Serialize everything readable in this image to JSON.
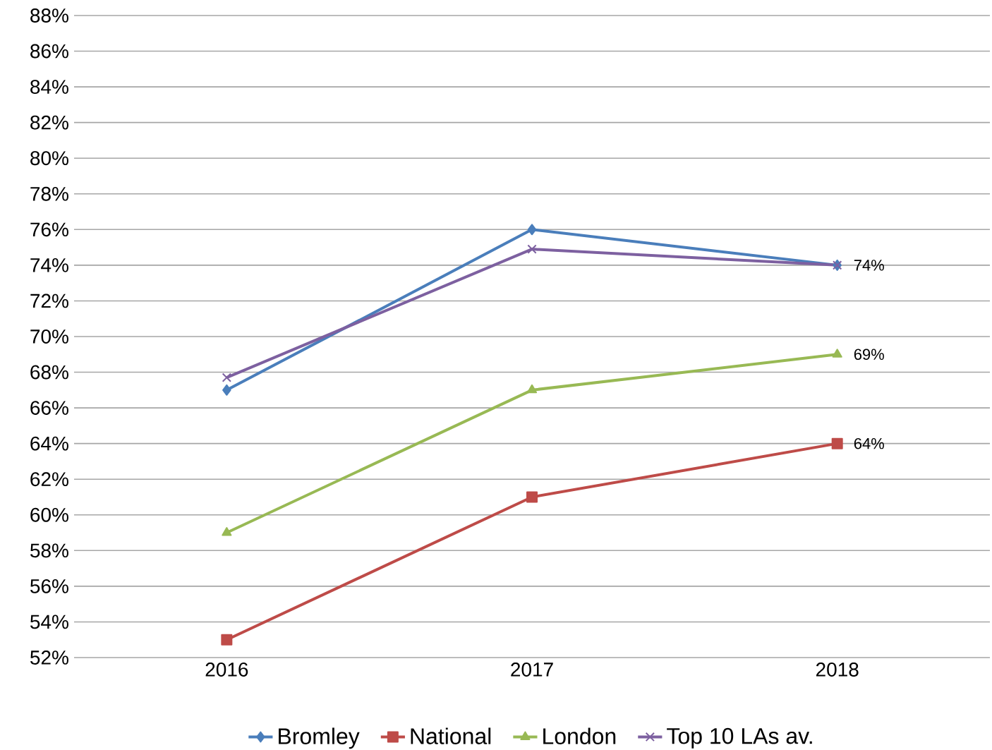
{
  "chart_data": {
    "type": "line",
    "categories": [
      "2016",
      "2017",
      "2018"
    ],
    "series": [
      {
        "name": "Bromley",
        "color": "#4a7ebb",
        "marker": "diamond",
        "values": [
          67,
          76,
          74
        ],
        "value_labels": [
          null,
          null,
          "74%"
        ]
      },
      {
        "name": "National",
        "color": "#be4b48",
        "marker": "square",
        "values": [
          53,
          61,
          64
        ],
        "value_labels": [
          null,
          null,
          "64%"
        ]
      },
      {
        "name": "London",
        "color": "#98b954",
        "marker": "triangle",
        "values": [
          59,
          67,
          69
        ],
        "value_labels": [
          null,
          null,
          "69%"
        ]
      },
      {
        "name": "Top 10 LAs av.",
        "color": "#7d60a0",
        "marker": "cross",
        "values": [
          67.7,
          74.9,
          74
        ]
      }
    ],
    "ylim": [
      52,
      88
    ],
    "yticks": [
      {
        "value": 52,
        "label": "52%"
      },
      {
        "value": 54,
        "label": "54%"
      },
      {
        "value": 56,
        "label": "56%"
      },
      {
        "value": 58,
        "label": "58%"
      },
      {
        "value": 60,
        "label": "60%"
      },
      {
        "value": 62,
        "label": "62%"
      },
      {
        "value": 64,
        "label": "64%"
      },
      {
        "value": 66,
        "label": "66%"
      },
      {
        "value": 68,
        "label": "68%"
      },
      {
        "value": 70,
        "label": "70%"
      },
      {
        "value": 72,
        "label": "72%"
      },
      {
        "value": 74,
        "label": "74%"
      },
      {
        "value": 76,
        "label": "76%"
      },
      {
        "value": 78,
        "label": "78%"
      },
      {
        "value": 80,
        "label": "80%"
      },
      {
        "value": 82,
        "label": "82%"
      },
      {
        "value": 84,
        "label": "84%"
      },
      {
        "value": 86,
        "label": "86%"
      },
      {
        "value": 88,
        "label": "88%"
      }
    ],
    "grid": "y",
    "legend": "bottom",
    "line_style": "solid"
  }
}
